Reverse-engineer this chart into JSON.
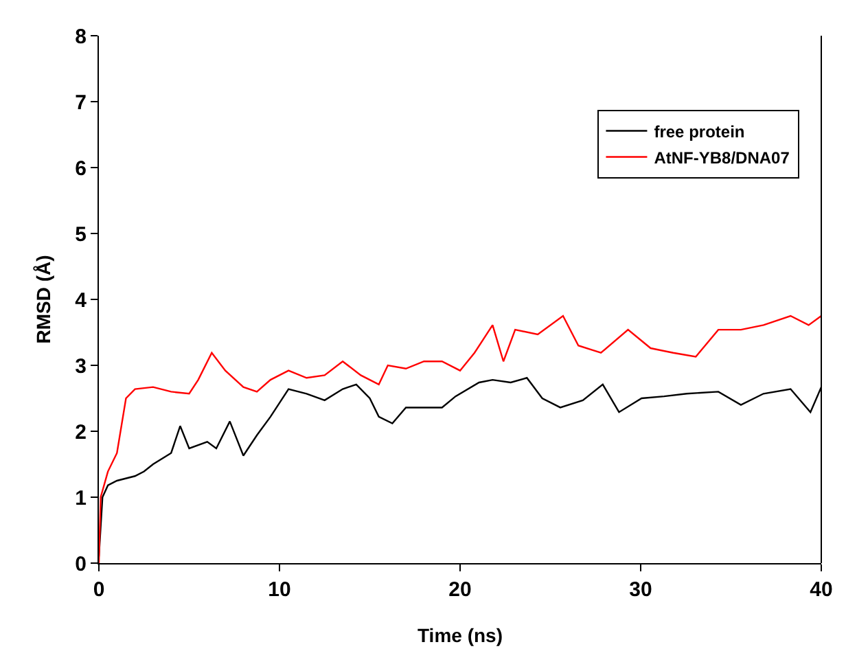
{
  "chart_data": {
    "type": "line",
    "xlabel": "Time (ns)",
    "ylabel": "RMSD (Å)",
    "xlim": [
      0,
      40
    ],
    "ylim": [
      0,
      8
    ],
    "xticks": [
      0,
      10,
      20,
      30,
      40
    ],
    "yticks": [
      0,
      1,
      2,
      3,
      4,
      5,
      6,
      7,
      8
    ],
    "grid": false,
    "legend": "top right",
    "marker": "none",
    "line_style": "solid",
    "series": [
      {
        "name": "free protein",
        "color": "#000000",
        "x": [
          0,
          0.2,
          0.5,
          1,
          2,
          2.5,
          3,
          4,
          4.5,
          5,
          6,
          6.5,
          7.25,
          8,
          8.75,
          9.5,
          10.5,
          11.5,
          12.5,
          13.5,
          14.25,
          15,
          15.5,
          16.25,
          17,
          18,
          19,
          19.75,
          21.05,
          21.8,
          22.8,
          23.7,
          24.55,
          25.55,
          26.8,
          27.9,
          28.8,
          30.05,
          31.3,
          32.55,
          34.3,
          35.55,
          36.8,
          38.3,
          39.4,
          40
        ],
        "values": [
          0.1,
          1.0,
          1.18,
          1.25,
          1.32,
          1.39,
          1.5,
          1.67,
          2.08,
          1.74,
          1.84,
          1.74,
          2.15,
          1.63,
          1.94,
          2.22,
          2.64,
          2.57,
          2.47,
          2.64,
          2.71,
          2.5,
          2.22,
          2.12,
          2.36,
          2.36,
          2.36,
          2.53,
          2.74,
          2.78,
          2.74,
          2.81,
          2.5,
          2.36,
          2.47,
          2.71,
          2.29,
          2.5,
          2.53,
          2.57,
          2.6,
          2.4,
          2.57,
          2.64,
          2.29,
          2.67
        ]
      },
      {
        "name": "AtNF-YB8/DNA07",
        "color": "#ff0000",
        "x": [
          0,
          0.1,
          0.5,
          1,
          1.5,
          2,
          3,
          4,
          5,
          5.5,
          6.25,
          7,
          8,
          8.75,
          9.5,
          10.5,
          11.5,
          12.5,
          13.5,
          14.5,
          15.5,
          16,
          17,
          18,
          19,
          20,
          20.8,
          21.8,
          22.4,
          23.05,
          24.3,
          25.7,
          26.55,
          27.8,
          29.3,
          30.55,
          31.8,
          33.05,
          34.3,
          35.55,
          36.8,
          38.3,
          39.3,
          40
        ],
        "values": [
          0,
          1.0,
          1.39,
          1.67,
          2.5,
          2.64,
          2.67,
          2.6,
          2.57,
          2.78,
          3.19,
          2.92,
          2.67,
          2.6,
          2.78,
          2.92,
          2.81,
          2.85,
          3.06,
          2.85,
          2.71,
          3.0,
          2.95,
          3.06,
          3.06,
          2.92,
          3.19,
          3.61,
          3.06,
          3.54,
          3.47,
          3.75,
          3.3,
          3.19,
          3.54,
          3.26,
          3.19,
          3.13,
          3.54,
          3.54,
          3.61,
          3.75,
          3.61,
          3.75
        ]
      }
    ]
  }
}
